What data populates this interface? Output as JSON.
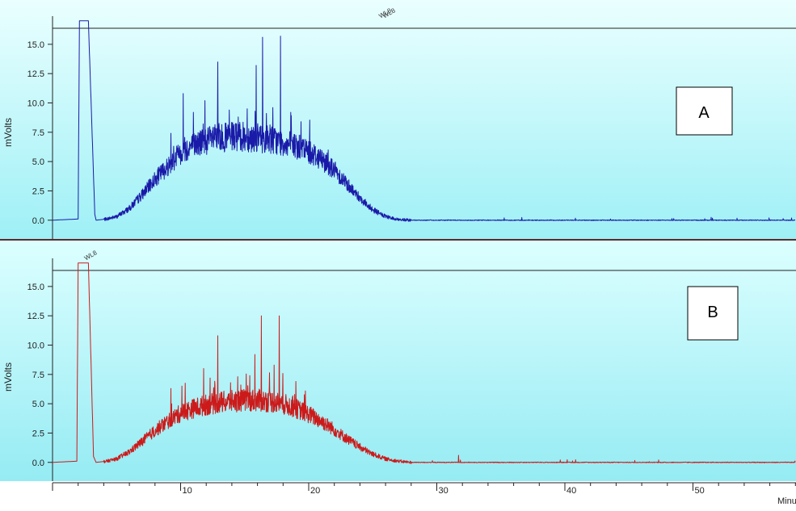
{
  "chart_data": [
    {
      "type": "line",
      "panel_label": "A",
      "ylabel": "mVolts",
      "line_color": "#1a1aa8",
      "background_top": "#eaffff",
      "background_bottom": "#9ef0f6",
      "ylim": [
        -1.6,
        17.4
      ],
      "clip_top": 17.0,
      "yticks": [
        "0.0",
        "2.5",
        "5.0",
        "7.5",
        "10.0",
        "12.5",
        "15.0"
      ],
      "peak_markers": [
        "WL8",
        "WL8"
      ],
      "x": [
        0,
        2.0,
        2.1,
        2.8,
        3.3,
        3.4,
        4.2,
        5.0,
        6.0,
        7.0,
        8.0,
        9.0,
        10.0,
        11.0,
        12.0,
        13.0,
        14.0,
        15.0,
        16.0,
        17.0,
        18.0,
        19.0,
        20.0,
        21.0,
        22.0,
        23.0,
        24.0,
        25.0,
        26.0,
        27.0,
        28.0,
        30.0,
        40.0,
        50.0,
        58.0
      ],
      "y": [
        0.0,
        0.1,
        17.0,
        17.0,
        0.5,
        0.0,
        0.1,
        0.3,
        1.0,
        2.2,
        3.5,
        4.6,
        5.8,
        6.4,
        6.8,
        7.0,
        7.1,
        7.1,
        7.0,
        6.9,
        6.6,
        6.3,
        5.9,
        5.2,
        4.3,
        3.1,
        1.9,
        0.9,
        0.3,
        0.05,
        0.0,
        0.0,
        0.0,
        0.0,
        0.0
      ],
      "spikes": [
        {
          "x": 10.2,
          "y": 10.8
        },
        {
          "x": 11.0,
          "y": 9.2
        },
        {
          "x": 11.9,
          "y": 10.2
        },
        {
          "x": 12.9,
          "y": 13.5
        },
        {
          "x": 13.8,
          "y": 9.4
        },
        {
          "x": 14.5,
          "y": 8.8
        },
        {
          "x": 15.2,
          "y": 9.5
        },
        {
          "x": 15.9,
          "y": 13.2
        },
        {
          "x": 16.4,
          "y": 15.6
        },
        {
          "x": 17.2,
          "y": 9.6
        },
        {
          "x": 17.8,
          "y": 15.7
        },
        {
          "x": 18.6,
          "y": 9.2
        },
        {
          "x": 19.4,
          "y": 8.4
        }
      ]
    },
    {
      "type": "line",
      "panel_label": "B",
      "ylabel": "mVolts",
      "line_color": "#cc1a1a",
      "background_top": "#dcffff",
      "background_bottom": "#8ee9f2",
      "ylim": [
        -1.6,
        17.4
      ],
      "clip_top": 17.0,
      "yticks": [
        "0.0",
        "2.5",
        "5.0",
        "7.5",
        "10.0",
        "12.5",
        "15.0"
      ],
      "peak_markers": [
        "WL8"
      ],
      "xticks": [
        "10",
        "20",
        "30",
        "40",
        "50"
      ],
      "xunit": "Minu",
      "x": [
        0,
        1.9,
        2.0,
        2.8,
        3.2,
        3.4,
        4.2,
        5.0,
        6.0,
        7.0,
        8.0,
        9.0,
        10.0,
        11.0,
        12.0,
        13.0,
        14.0,
        15.0,
        16.0,
        17.0,
        18.0,
        19.0,
        20.0,
        21.0,
        22.0,
        23.0,
        24.0,
        25.0,
        26.0,
        27.0,
        28.0,
        30.0,
        40.0,
        50.0,
        58.0
      ],
      "y": [
        0.0,
        0.1,
        17.0,
        17.0,
        0.5,
        0.0,
        0.1,
        0.3,
        0.9,
        1.8,
        2.7,
        3.5,
        4.2,
        4.6,
        4.9,
        5.1,
        5.2,
        5.3,
        5.3,
        5.2,
        5.0,
        4.6,
        4.1,
        3.5,
        2.8,
        2.0,
        1.3,
        0.7,
        0.3,
        0.1,
        0.0,
        0.0,
        0.0,
        0.0,
        0.0
      ],
      "spikes": [
        {
          "x": 10.1,
          "y": 6.5
        },
        {
          "x": 11.8,
          "y": 8.0
        },
        {
          "x": 12.3,
          "y": 7.2
        },
        {
          "x": 12.9,
          "y": 10.8
        },
        {
          "x": 13.9,
          "y": 6.8
        },
        {
          "x": 14.7,
          "y": 6.6
        },
        {
          "x": 15.4,
          "y": 7.4
        },
        {
          "x": 15.8,
          "y": 9.2
        },
        {
          "x": 16.3,
          "y": 12.5
        },
        {
          "x": 17.3,
          "y": 8.3
        },
        {
          "x": 17.7,
          "y": 12.5
        },
        {
          "x": 19.0,
          "y": 6.9
        },
        {
          "x": 31.7,
          "y": 0.6
        }
      ]
    }
  ]
}
